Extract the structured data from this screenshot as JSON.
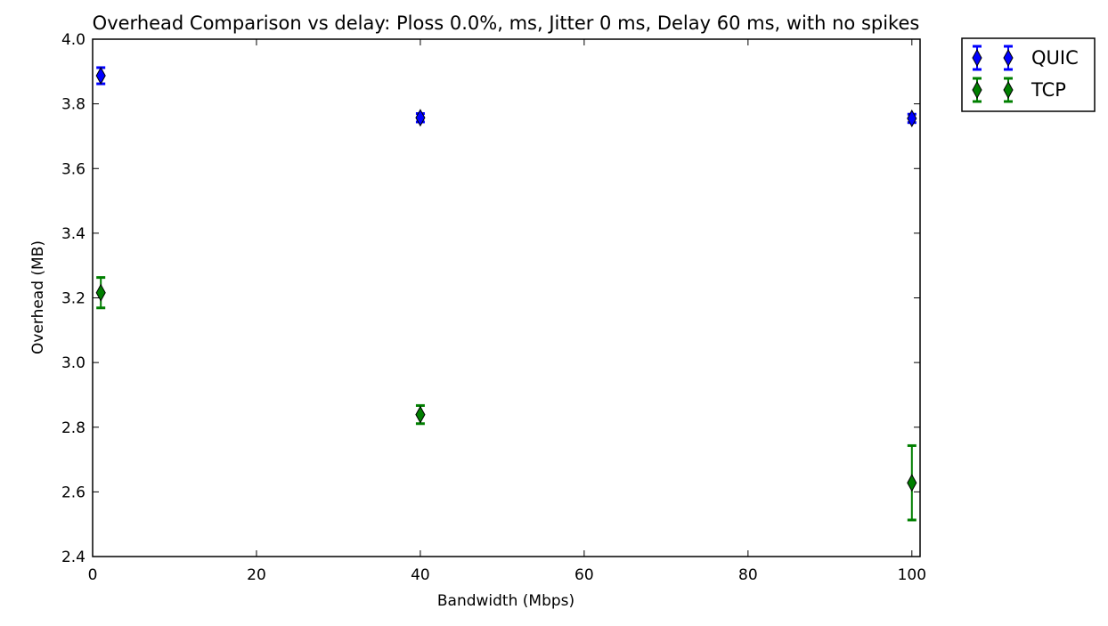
{
  "chart_data": {
    "type": "scatter",
    "title": "Overhead Comparison vs delay: Ploss 0.0%, ms, Jitter 0 ms, Delay 60 ms, with no spikes",
    "xlabel": "Bandwidth (Mbps)",
    "ylabel": "Overhead (MB)",
    "xlim": [
      0,
      101
    ],
    "ylim": [
      2.4,
      4.0
    ],
    "xticks": [
      0,
      20,
      40,
      60,
      80,
      100
    ],
    "yticks": [
      2.4,
      2.6,
      2.8,
      3.0,
      3.2,
      3.4,
      3.6,
      3.8,
      4.0
    ],
    "xtick_labels": [
      "0",
      "20",
      "40",
      "60",
      "80",
      "100"
    ],
    "ytick_labels": [
      "2.4",
      "2.6",
      "2.8",
      "3.0",
      "3.2",
      "3.4",
      "3.6",
      "3.8",
      "4.0"
    ],
    "grid": false,
    "legend_position": "outside-top-right",
    "marker": "diamond",
    "error_bars": true,
    "series": [
      {
        "name": "QUIC",
        "color": "#0000ff",
        "x": [
          1,
          40,
          100
        ],
        "y": [
          3.887,
          3.757,
          3.755
        ],
        "error": [
          0.025,
          0.013,
          0.013
        ]
      },
      {
        "name": "TCP",
        "color": "#007f00",
        "x": [
          1,
          40,
          100
        ],
        "y": [
          3.216,
          2.839,
          2.628
        ],
        "error": [
          0.047,
          0.028,
          0.115
        ]
      }
    ]
  }
}
